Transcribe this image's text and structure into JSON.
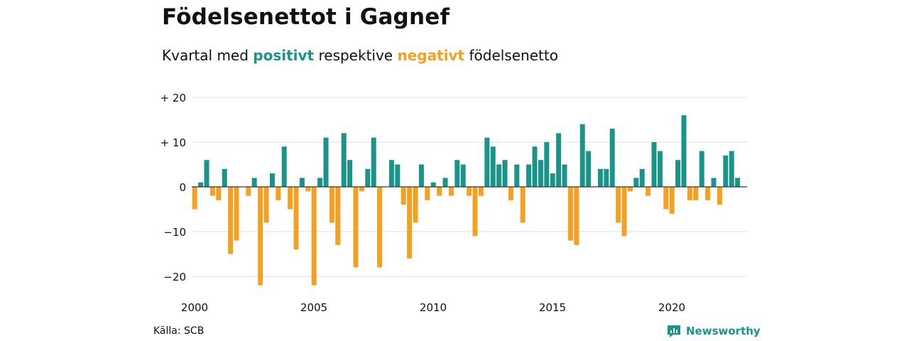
{
  "header": {
    "title": "Födelsenettot i Gagnef",
    "subtitle_pre": "Kvartal med ",
    "subtitle_pos": "positivt",
    "subtitle_mid": " respektive ",
    "subtitle_neg": "negativt",
    "subtitle_post": " födelsenetto"
  },
  "footer": {
    "source": "Källa: SCB",
    "brand": "Newsworthy",
    "brand_icon": "newsworthy-logo-icon"
  },
  "colors": {
    "positive": "#1a9488",
    "negative": "#f5a021",
    "grid": "#dddddd",
    "zero": "#333333"
  },
  "chart_data": {
    "type": "bar",
    "title": "Födelsenettot i Gagnef",
    "subtitle": "Kvartal med positivt respektive negativt födelsenetto",
    "xlabel": "",
    "ylabel": "",
    "x_start": 2000,
    "periods_per_year": 4,
    "xlim": [
      2000,
      2023.25
    ],
    "ylim": [
      -22,
      20
    ],
    "y_ticks": [
      20,
      10,
      0,
      -10,
      -20
    ],
    "y_tick_labels": [
      "+ 20",
      "+ 10",
      "0",
      "−10",
      "−20"
    ],
    "x_ticks": [
      2000,
      2005,
      2010,
      2015,
      2020
    ],
    "x_tick_labels": [
      "2000",
      "2005",
      "2010",
      "2015",
      "2020"
    ],
    "grid": true,
    "legend": "none",
    "values": [
      -5,
      1,
      6,
      -2,
      -3,
      4,
      -15,
      -12,
      0,
      -2,
      2,
      -22,
      -8,
      3,
      -3,
      9,
      -5,
      -14,
      2,
      -1,
      -22,
      2,
      11,
      -8,
      -13,
      12,
      6,
      -18,
      -1,
      4,
      11,
      -18,
      0,
      6,
      5,
      -4,
      -16,
      -8,
      5,
      -3,
      1,
      -2,
      2,
      -2,
      6,
      5,
      -2,
      -11,
      -2,
      11,
      9,
      5,
      6,
      -3,
      5,
      -8,
      5,
      9,
      6,
      10,
      3,
      12,
      5,
      -12,
      -13,
      14,
      8,
      0,
      4,
      4,
      13,
      -8,
      -11,
      -1,
      2,
      4,
      -2,
      10,
      8,
      -5,
      -6,
      6,
      16,
      -3,
      -3,
      8,
      -3,
      2,
      -4,
      7,
      8,
      2
    ]
  }
}
